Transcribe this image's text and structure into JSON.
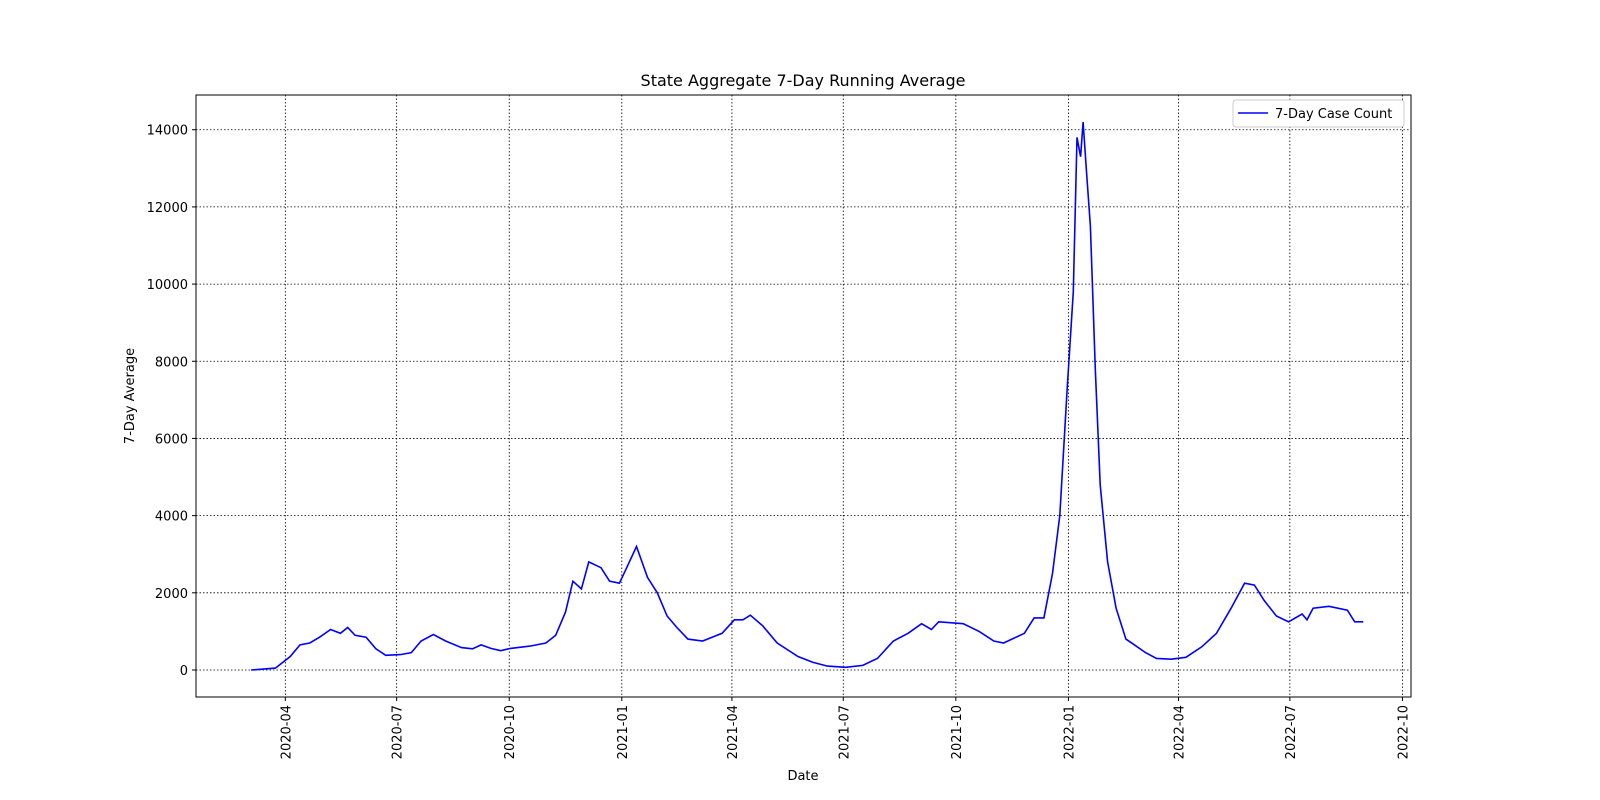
{
  "chart_data": {
    "type": "line",
    "title": "State Aggregate 7-Day Running Average",
    "x_label": "Date",
    "y_label": "7-Day Average",
    "x": [
      "2020-03-04",
      "2020-03-24",
      "2020-04-05",
      "2020-04-13",
      "2020-04-21",
      "2020-04-29",
      "2020-05-08",
      "2020-05-16",
      "2020-05-22",
      "2020-05-28",
      "2020-06-06",
      "2020-06-14",
      "2020-06-22",
      "2020-07-04",
      "2020-07-13",
      "2020-07-21",
      "2020-07-31",
      "2020-08-10",
      "2020-08-23",
      "2020-09-01",
      "2020-09-08",
      "2020-09-16",
      "2020-09-24",
      "2020-10-02",
      "2020-10-18",
      "2020-10-31",
      "2020-11-08",
      "2020-11-16",
      "2020-11-22",
      "2020-11-29",
      "2020-12-05",
      "2020-12-15",
      "2020-12-22",
      "2020-12-30",
      "2021-01-05",
      "2021-01-13",
      "2021-01-22",
      "2021-01-30",
      "2021-02-07",
      "2021-02-15",
      "2021-02-24",
      "2021-03-08",
      "2021-03-24",
      "2021-04-03",
      "2021-04-10",
      "2021-04-16",
      "2021-04-26",
      "2021-05-08",
      "2021-05-25",
      "2021-06-06",
      "2021-06-18",
      "2021-07-03",
      "2021-07-17",
      "2021-07-29",
      "2021-08-11",
      "2021-08-23",
      "2021-09-03",
      "2021-09-11",
      "2021-09-17",
      "2021-10-07",
      "2021-10-20",
      "2021-11-01",
      "2021-11-09",
      "2021-11-26",
      "2021-12-04",
      "2021-12-12",
      "2021-12-19",
      "2021-12-25",
      "2021-12-31",
      "2022-01-05",
      "2022-01-08",
      "2022-01-11",
      "2022-01-13",
      "2022-01-16",
      "2022-01-19",
      "2022-01-23",
      "2022-01-27",
      "2022-02-02",
      "2022-02-09",
      "2022-02-17",
      "2022-02-24",
      "2022-03-05",
      "2022-03-14",
      "2022-03-26",
      "2022-04-07",
      "2022-04-20",
      "2022-05-02",
      "2022-05-14",
      "2022-05-25",
      "2022-06-02",
      "2022-06-10",
      "2022-06-20",
      "2022-06-30",
      "2022-07-11",
      "2022-07-15",
      "2022-07-20",
      "2022-08-02",
      "2022-08-17",
      "2022-08-23",
      "2022-08-30"
    ],
    "series": [
      {
        "name": "7-Day Case Count",
        "color": "#0000ff",
        "values": [
          0,
          50,
          350,
          650,
          700,
          850,
          1050,
          950,
          1100,
          900,
          850,
          550,
          380,
          400,
          450,
          750,
          920,
          750,
          580,
          550,
          650,
          560,
          500,
          560,
          620,
          700,
          900,
          1500,
          2300,
          2100,
          2800,
          2650,
          2300,
          2250,
          2650,
          3200,
          2400,
          2000,
          1400,
          1100,
          800,
          750,
          950,
          1300,
          1300,
          1420,
          1150,
          700,
          350,
          200,
          100,
          70,
          120,
          300,
          750,
          950,
          1200,
          1050,
          1250,
          1200,
          1000,
          750,
          700,
          950,
          1350,
          1350,
          2500,
          4000,
          7300,
          9800,
          13800,
          13300,
          14200,
          12800,
          11500,
          7800,
          4800,
          2800,
          1600,
          800,
          650,
          450,
          300,
          280,
          330,
          600,
          950,
          1600,
          2250,
          2200,
          1800,
          1400,
          1250,
          1450,
          1300,
          1600,
          1650,
          1550,
          1250,
          1250
        ]
      }
    ],
    "xlim": [
      "2020-01-19",
      "2022-10-08"
    ],
    "xticks": [
      "2020-04",
      "2020-07",
      "2020-10",
      "2021-01",
      "2021-04",
      "2021-07",
      "2021-10",
      "2022-01",
      "2022-04",
      "2022-07",
      "2022-10"
    ],
    "ylim": [
      -700,
      14900
    ],
    "yticks": [
      0,
      2000,
      4000,
      6000,
      8000,
      10000,
      12000,
      14000
    ],
    "grid": true,
    "legend": "upper right"
  }
}
